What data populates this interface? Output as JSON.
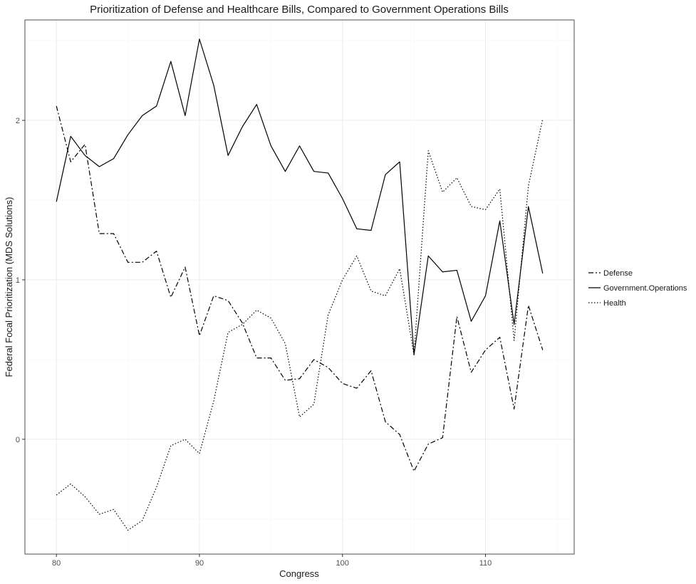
{
  "chart_data": {
    "type": "line",
    "title": "Prioritization of Defense and Healthcare Bills, Compared to Government Operations Bills",
    "xlabel": "Congress",
    "ylabel": "Federal Focal Prioritization (MDS Solutions)",
    "xlim": [
      77.8,
      116.2
    ],
    "ylim": [
      -0.72,
      2.63
    ],
    "x_ticks": [
      80,
      90,
      100,
      110
    ],
    "y_ticks": [
      0,
      1,
      2
    ],
    "grid": true,
    "legend_position": "right",
    "x": [
      80,
      81,
      82,
      83,
      84,
      85,
      86,
      87,
      88,
      89,
      90,
      91,
      92,
      93,
      94,
      95,
      96,
      97,
      98,
      99,
      100,
      101,
      102,
      103,
      104,
      105,
      106,
      107,
      108,
      109,
      110,
      111,
      112,
      113,
      114
    ],
    "series": [
      {
        "name": "Defense",
        "dash": "dashdot",
        "values": [
          2.09,
          1.74,
          1.85,
          1.29,
          1.29,
          1.11,
          1.11,
          1.18,
          0.89,
          1.08,
          0.65,
          0.9,
          0.87,
          0.73,
          0.51,
          0.51,
          0.37,
          0.38,
          0.5,
          0.45,
          0.35,
          0.32,
          0.43,
          0.11,
          0.03,
          -0.2,
          -0.03,
          0.01,
          0.77,
          0.42,
          0.56,
          0.64,
          0.19,
          0.84,
          0.56
        ]
      },
      {
        "name": "Government.Operations",
        "dash": "solid",
        "values": [
          1.49,
          1.9,
          1.78,
          1.71,
          1.76,
          1.91,
          2.03,
          2.09,
          2.37,
          2.03,
          2.51,
          2.22,
          1.78,
          1.96,
          2.1,
          1.84,
          1.68,
          1.84,
          1.68,
          1.67,
          1.51,
          1.32,
          1.31,
          1.66,
          1.74,
          0.53,
          1.15,
          1.05,
          1.06,
          0.74,
          0.9,
          1.37,
          0.72,
          1.46,
          1.04
        ]
      },
      {
        "name": "Health",
        "dash": "dotted",
        "values": [
          -0.35,
          -0.28,
          -0.36,
          -0.47,
          -0.44,
          -0.57,
          -0.51,
          -0.3,
          -0.04,
          0.0,
          -0.09,
          0.24,
          0.67,
          0.72,
          0.81,
          0.76,
          0.6,
          0.14,
          0.22,
          0.78,
          1.0,
          1.15,
          0.93,
          0.9,
          1.07,
          0.53,
          1.81,
          1.55,
          1.64,
          1.46,
          1.44,
          1.57,
          0.62,
          1.59,
          2.01
        ]
      }
    ]
  }
}
